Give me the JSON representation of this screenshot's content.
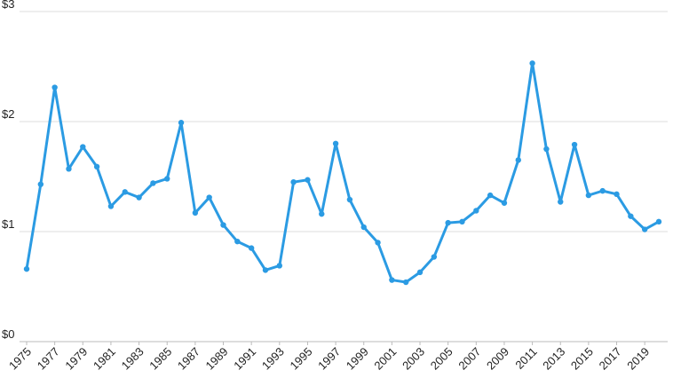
{
  "chart_data": {
    "type": "line",
    "x": [
      1975,
      1976,
      1977,
      1978,
      1979,
      1980,
      1981,
      1982,
      1983,
      1984,
      1985,
      1986,
      1987,
      1988,
      1989,
      1990,
      1991,
      1992,
      1993,
      1994,
      1995,
      1996,
      1997,
      1998,
      1999,
      2000,
      2001,
      2002,
      2003,
      2004,
      2005,
      2006,
      2007,
      2008,
      2009,
      2010,
      2011,
      2012,
      2013,
      2014,
      2015,
      2016,
      2017,
      2018,
      2019,
      2020
    ],
    "series": [
      {
        "color": "#2b9be3",
        "values": [
          0.66,
          1.43,
          2.31,
          1.57,
          1.77,
          1.59,
          1.23,
          1.36,
          1.31,
          1.44,
          1.48,
          1.99,
          1.17,
          1.31,
          1.06,
          0.91,
          0.85,
          0.65,
          0.69,
          1.45,
          1.47,
          1.16,
          1.8,
          1.29,
          1.04,
          0.9,
          0.56,
          0.54,
          0.63,
          0.77,
          1.08,
          1.09,
          1.19,
          1.33,
          1.26,
          1.65,
          2.53,
          1.75,
          1.27,
          1.79,
          1.33,
          1.37,
          1.34,
          1.14,
          1.02,
          1.09
        ]
      }
    ],
    "xlim": [
      1975,
      2020
    ],
    "xticks": [
      1975,
      1977,
      1979,
      1981,
      1983,
      1985,
      1987,
      1989,
      1991,
      1993,
      1995,
      1997,
      1999,
      2001,
      2003,
      2005,
      2007,
      2009,
      2011,
      2013,
      2015,
      2017,
      2019
    ],
    "ylim": [
      0,
      3
    ],
    "yticks": [
      {
        "value": 0,
        "label": "$0"
      },
      {
        "value": 1,
        "label": "$1"
      },
      {
        "value": 2,
        "label": "$2"
      },
      {
        "value": 3,
        "label": "$3"
      }
    ],
    "grid": true
  }
}
